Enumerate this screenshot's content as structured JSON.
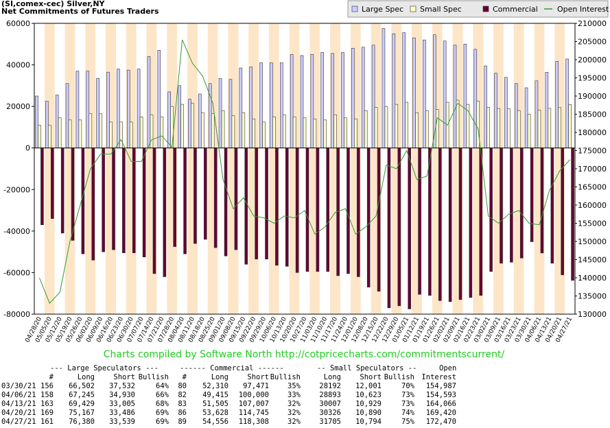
{
  "chart_data": {
    "type": "bar",
    "title": "(SI,comex-cec) Silver,NY",
    "subtitle": "Net Commitments of Futures Traders",
    "categories": [
      "04/28/20",
      "05/05/20",
      "05/12/20",
      "05/19/20",
      "05/26/20",
      "06/02/20",
      "06/09/20",
      "06/16/20",
      "06/23/20",
      "06/30/20",
      "07/07/20",
      "07/14/20",
      "07/21/20",
      "07/28/20",
      "08/04/20",
      "08/11/20",
      "08/18/20",
      "08/25/20",
      "09/01/20",
      "09/08/20",
      "09/15/20",
      "09/22/20",
      "09/29/20",
      "10/06/20",
      "10/13/20",
      "10/20/20",
      "10/27/20",
      "11/03/20",
      "11/10/20",
      "11/17/20",
      "11/24/20",
      "12/01/20",
      "12/08/20",
      "12/15/20",
      "12/22/20",
      "12/29/20",
      "01/05/21",
      "01/12/21",
      "01/19/21",
      "01/26/21",
      "02/02/21",
      "02/09/21",
      "02/16/21",
      "02/23/21",
      "03/02/21",
      "03/09/21",
      "03/16/21",
      "03/23/21",
      "03/30/21",
      "04/06/21",
      "04/13/21",
      "04/20/21",
      "04/27/21"
    ],
    "series": [
      {
        "name": "Large Spec",
        "color": "#ccccff",
        "values": [
          25000,
          22500,
          25500,
          31000,
          37000,
          37000,
          33500,
          36500,
          38000,
          37500,
          38000,
          44000,
          47000,
          27000,
          30000,
          23500,
          26000,
          31000,
          33500,
          33000,
          38500,
          39000,
          41000,
          41000,
          41000,
          45000,
          44500,
          45000,
          46000,
          45500,
          46000,
          48000,
          48500,
          49500,
          57500,
          55000,
          55500,
          53000,
          52000,
          54500,
          51500,
          49500,
          50000,
          47500,
          39500,
          36000,
          34000,
          31000,
          28970,
          32315,
          36424,
          41681,
          42841
        ]
      },
      {
        "name": "Small Spec",
        "color": "#ffffcc",
        "values": [
          11000,
          11000,
          14500,
          13500,
          13500,
          16500,
          16500,
          12500,
          12500,
          12500,
          15000,
          16000,
          15000,
          20000,
          21000,
          21500,
          17000,
          16500,
          18000,
          15500,
          17000,
          14000,
          12500,
          15000,
          16000,
          15000,
          14500,
          14000,
          13500,
          16000,
          14500,
          14000,
          18000,
          19500,
          20000,
          21000,
          22000,
          17000,
          18000,
          18500,
          22000,
          23000,
          21000,
          22500,
          19500,
          19000,
          19000,
          18000,
          16191,
          18270,
          19078,
          19436,
          20911
        ]
      },
      {
        "name": "Commercial",
        "color": "#660033",
        "values": [
          -37000,
          -34000,
          -41000,
          -44500,
          -51000,
          -54000,
          -50000,
          -49000,
          -50500,
          -50500,
          -52500,
          -60500,
          -62000,
          -47500,
          -51000,
          -46000,
          -44000,
          -48000,
          -52000,
          -49000,
          -56000,
          -53500,
          -53500,
          -56500,
          -57000,
          -60000,
          -59500,
          -59500,
          -59500,
          -61500,
          -60500,
          -62000,
          -67000,
          -69000,
          -77000,
          -76000,
          -77500,
          -70500,
          -71000,
          -73500,
          -74000,
          -73000,
          -72000,
          -71000,
          -59500,
          -55500,
          -55000,
          -53000,
          -45161,
          -50585,
          -55502,
          -61117,
          -63752
        ]
      },
      {
        "name": "Open Interest",
        "color": "#339933",
        "type": "line",
        "axis": "y2",
        "values": [
          140000,
          133000,
          136000,
          150000,
          160000,
          170000,
          174000,
          174000,
          178000,
          172000,
          172000,
          178000,
          179000,
          176000,
          205500,
          199000,
          195500,
          188000,
          167000,
          159000,
          162000,
          157000,
          156500,
          155000,
          157000,
          156500,
          158500,
          152000,
          154000,
          158000,
          159000,
          152000,
          154000,
          157000,
          171000,
          170000,
          175000,
          167000,
          168000,
          184000,
          182000,
          188000,
          186000,
          181000,
          157000,
          155000,
          157500,
          158500,
          154987,
          154593,
          164066,
          169420,
          172470
        ]
      }
    ],
    "ylim": [
      -80000,
      60000
    ],
    "yticks": [
      -80000,
      -60000,
      -40000,
      -20000,
      0,
      20000,
      40000,
      60000
    ],
    "y2lim": [
      130000,
      210000
    ],
    "y2ticks": [
      130000,
      135000,
      140000,
      145000,
      150000,
      155000,
      160000,
      165000,
      170000,
      175000,
      180000,
      185000,
      190000,
      195000,
      200000,
      205000,
      210000
    ],
    "grid": false,
    "legend": "top-right"
  },
  "footer": "Charts compiled by Software North  http://cotpricecharts.com/commitmentscurrent/",
  "table": {
    "groups": [
      "--- Large Speculators ---",
      "------ Commercial ------",
      "-- Small Speculators --",
      "Open"
    ],
    "columns": [
      "#",
      "Long",
      "Short",
      "Bullish",
      "#",
      "Long",
      "Short",
      "Bullish",
      "Long",
      "Short",
      "Bullish",
      "Interest"
    ],
    "rows": [
      [
        "03/30/21",
        "156",
        "66,502",
        "37,532",
        "64%",
        "80",
        "52,310",
        "97,471",
        "35%",
        "28192",
        "12,001",
        "70%",
        "154,987"
      ],
      [
        "04/06/21",
        "158",
        "67,245",
        "34,930",
        "66%",
        "82",
        "49,415",
        "100,000",
        "33%",
        "28893",
        "10,623",
        "73%",
        "154,593"
      ],
      [
        "04/13/21",
        "163",
        "69,429",
        "33,005",
        "68%",
        "83",
        "51,505",
        "107,007",
        "32%",
        "30007",
        "10,929",
        "73%",
        "164,066"
      ],
      [
        "04/20/21",
        "169",
        "75,167",
        "33,486",
        "69%",
        "86",
        "53,628",
        "114,745",
        "32%",
        "30326",
        "10,890",
        "74%",
        "169,420"
      ],
      [
        "04/27/21",
        "161",
        "76,380",
        "33,539",
        "69%",
        "89",
        "54,556",
        "118,308",
        "32%",
        "31705",
        "10,794",
        "75%",
        "172,470"
      ]
    ]
  }
}
